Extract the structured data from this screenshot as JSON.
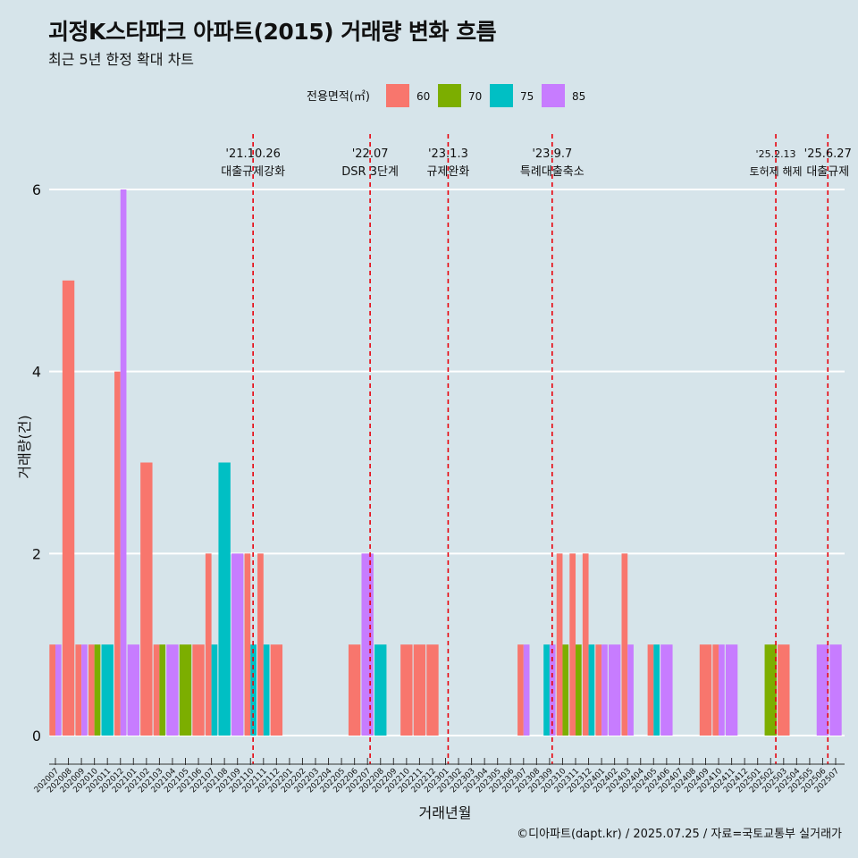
{
  "page": {
    "title": "괴정K스타파크 아파트(2015) 거래량 변화 흐름",
    "subtitle": "최근 5년 한정 확대 차트",
    "footer": "©디아파트(dapt.kr) / 2025.07.25 / 자료=국토교통부 실거래가"
  },
  "chart_data": {
    "type": "bar",
    "title": "괴정K스타파크 아파트(2015) 거래량 변화 흐름",
    "subtitle": "최근 5년 한정 확대 차트",
    "xlabel": "거래년월",
    "ylabel": "거래량(건)",
    "ylim": [
      -0.5,
      6.3
    ],
    "yticks": [
      0,
      2,
      4,
      6
    ],
    "legend": {
      "title": "전용면적(㎡)",
      "position": "top",
      "entries": [
        {
          "name": "60",
          "color": "#F8766D"
        },
        {
          "name": "70",
          "color": "#7CAE00"
        },
        {
          "name": "75",
          "color": "#00BFC4"
        },
        {
          "name": "85",
          "color": "#C77CFF"
        }
      ]
    },
    "categories": [
      "202007",
      "202008",
      "202009",
      "202010",
      "202011",
      "202012",
      "202101",
      "202102",
      "202103",
      "202104",
      "202105",
      "202106",
      "202107",
      "202108",
      "202109",
      "202110",
      "202111",
      "202112",
      "202201",
      "202202",
      "202203",
      "202204",
      "202205",
      "202206",
      "202207",
      "202208",
      "202209",
      "202210",
      "202211",
      "202212",
      "202301",
      "202302",
      "202303",
      "202304",
      "202305",
      "202306",
      "202307",
      "202308",
      "202309",
      "202310",
      "202311",
      "202312",
      "202401",
      "202402",
      "202403",
      "202404",
      "202405",
      "202406",
      "202407",
      "202408",
      "202409",
      "202410",
      "202411",
      "202412",
      "202501",
      "202502",
      "202503",
      "202504",
      "202505",
      "202506",
      "202507"
    ],
    "series": [
      {
        "name": "60",
        "color": "#F8766D",
        "values": [
          1,
          5,
          1,
          1,
          0,
          4,
          0,
          3,
          1,
          0,
          0,
          1,
          2,
          0,
          0,
          2,
          2,
          1,
          0,
          0,
          0,
          0,
          0,
          1,
          0,
          0,
          0,
          1,
          1,
          1,
          0,
          0,
          0,
          0,
          0,
          0,
          1,
          0,
          0,
          2,
          2,
          2,
          1,
          0,
          2,
          0,
          1,
          0,
          0,
          0,
          1,
          1,
          0,
          0,
          0,
          0,
          1,
          0,
          0,
          0,
          0
        ]
      },
      {
        "name": "70",
        "color": "#7CAE00",
        "values": [
          0,
          0,
          0,
          1,
          0,
          0,
          0,
          0,
          1,
          0,
          1,
          0,
          0,
          0,
          0,
          0,
          0,
          0,
          0,
          0,
          0,
          0,
          0,
          0,
          0,
          0,
          0,
          0,
          0,
          0,
          0,
          0,
          0,
          0,
          0,
          0,
          0,
          0,
          0,
          1,
          1,
          0,
          0,
          0,
          0,
          0,
          0,
          0,
          0,
          0,
          0,
          0,
          0,
          0,
          0,
          1,
          0,
          0,
          0,
          0,
          0
        ]
      },
      {
        "name": "75",
        "color": "#00BFC4",
        "values": [
          0,
          0,
          0,
          0,
          1,
          0,
          0,
          0,
          0,
          0,
          0,
          0,
          1,
          3,
          0,
          1,
          1,
          0,
          0,
          0,
          0,
          0,
          0,
          0,
          0,
          1,
          0,
          0,
          0,
          0,
          0,
          0,
          0,
          0,
          0,
          0,
          0,
          0,
          1,
          0,
          0,
          1,
          0,
          0,
          0,
          0,
          1,
          0,
          0,
          0,
          0,
          0,
          0,
          0,
          0,
          0,
          0,
          0,
          0,
          0,
          0
        ]
      },
      {
        "name": "85",
        "color": "#C77CFF",
        "values": [
          1,
          0,
          1,
          0,
          0,
          6,
          1,
          0,
          0,
          1,
          0,
          0,
          0,
          0,
          2,
          0,
          0,
          0,
          0,
          0,
          0,
          0,
          0,
          0,
          2,
          0,
          0,
          0,
          0,
          0,
          0,
          0,
          0,
          0,
          0,
          0,
          1,
          0,
          1,
          0,
          0,
          0,
          1,
          1,
          1,
          0,
          0,
          1,
          0,
          0,
          0,
          1,
          1,
          0,
          0,
          0,
          0,
          0,
          0,
          1,
          1
        ]
      }
    ],
    "events": [
      {
        "index": 15.2,
        "date": "'21.10.26",
        "label": "대출규제강화"
      },
      {
        "index": 24.2,
        "date": "'22.07",
        "label": "DSR 3단계"
      },
      {
        "index": 30.2,
        "date": "'23.1.3",
        "label": "규제완화"
      },
      {
        "index": 38.2,
        "date": "'23.9.7",
        "label": "특례대출축소"
      },
      {
        "index": 55.4,
        "date": "'25.2.13",
        "label": "토허제 해제"
      },
      {
        "index": 59.4,
        "date": "'25.6.27",
        "label": "대출규제"
      }
    ]
  }
}
